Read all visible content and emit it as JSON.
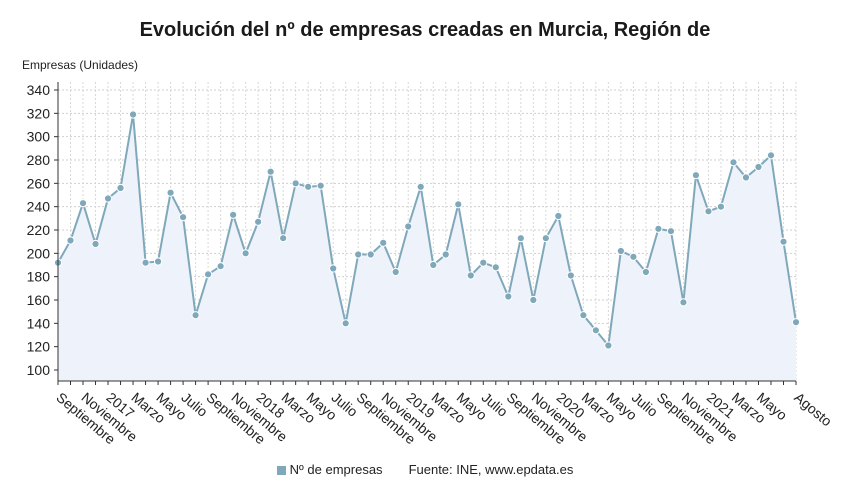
{
  "chart_data": {
    "type": "area",
    "title": "Evolución del nº de empresas creadas en Murcia, Región de",
    "ylabel": "Empresas (Unidades)",
    "xlabel": "",
    "ylim": [
      100,
      340
    ],
    "yticks": [
      100,
      120,
      140,
      160,
      180,
      200,
      220,
      240,
      260,
      280,
      300,
      320,
      340
    ],
    "series": [
      {
        "name": "Nº de empresas",
        "color": "#7fa8ba",
        "values": [
          192,
          211,
          243,
          208,
          247,
          256,
          319,
          192,
          193,
          252,
          231,
          147,
          182,
          189,
          233,
          200,
          227,
          270,
          213,
          260,
          257,
          258,
          187,
          140,
          199,
          199,
          209,
          184,
          223,
          257,
          190,
          199,
          242,
          181,
          192,
          188,
          163,
          213,
          160,
          213,
          232,
          181,
          147,
          134,
          121,
          202,
          197,
          184,
          221,
          219,
          158,
          267,
          236,
          240,
          278,
          265,
          274,
          284,
          210,
          141
        ]
      }
    ],
    "x_tick_labels": [
      {
        "index": 0,
        "label": "Septiembre"
      },
      {
        "index": 2,
        "label": "Noviembre"
      },
      {
        "index": 4,
        "label": "2017"
      },
      {
        "index": 6,
        "label": "Marzo"
      },
      {
        "index": 8,
        "label": "Mayo"
      },
      {
        "index": 10,
        "label": "Julio"
      },
      {
        "index": 12,
        "label": "Septiembre"
      },
      {
        "index": 14,
        "label": "Noviembre"
      },
      {
        "index": 16,
        "label": "2018"
      },
      {
        "index": 18,
        "label": "Marzo"
      },
      {
        "index": 20,
        "label": "Mayo"
      },
      {
        "index": 22,
        "label": "Julio"
      },
      {
        "index": 24,
        "label": "Septiembre"
      },
      {
        "index": 26,
        "label": "Noviembre"
      },
      {
        "index": 28,
        "label": "2019"
      },
      {
        "index": 30,
        "label": "Marzo"
      },
      {
        "index": 32,
        "label": "Mayo"
      },
      {
        "index": 34,
        "label": "Julio"
      },
      {
        "index": 36,
        "label": "Septiembre"
      },
      {
        "index": 38,
        "label": "Noviembre"
      },
      {
        "index": 40,
        "label": "2020"
      },
      {
        "index": 42,
        "label": "Marzo"
      },
      {
        "index": 44,
        "label": "Mayo"
      },
      {
        "index": 46,
        "label": "Julio"
      },
      {
        "index": 48,
        "label": "Septiembre"
      },
      {
        "index": 50,
        "label": "Noviembre"
      },
      {
        "index": 52,
        "label": "2021"
      },
      {
        "index": 54,
        "label": "Marzo"
      },
      {
        "index": 56,
        "label": "Mayo"
      },
      {
        "index": 59,
        "label": "Agosto"
      }
    ],
    "grid": true,
    "legend": "bottom-center"
  },
  "footer": {
    "legend_label": "Nº de empresas",
    "source": "Fuente: INE, www.epdata.es"
  }
}
